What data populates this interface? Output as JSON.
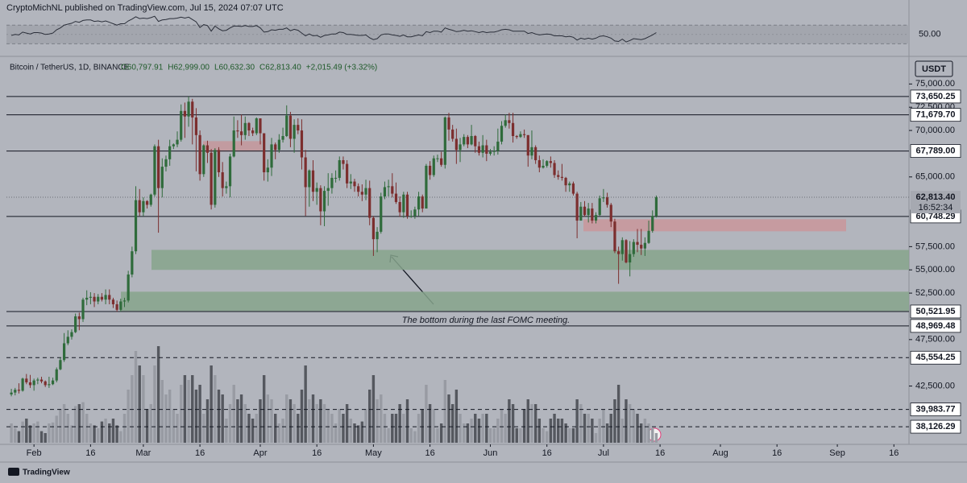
{
  "header": {
    "byline": "CryptoMichNL published on TradingView.com, Jul 15, 2024 07:07 UTC",
    "symbol": "Bitcoin / TetherUS, 1D, BINANCE",
    "ohlc": [
      "O60,797.91",
      "H62,999.00",
      "L60,632.30",
      "C62,813.40",
      "+2,015.49 (+3.32%)"
    ],
    "currency": "USDT",
    "brand": "TradingView"
  },
  "chart_data": {
    "type": "candlestick",
    "x": [
      "Jan 26",
      "Jan 27",
      "Jan 28",
      "Jan 29",
      "Jan 30",
      "Jan 31",
      "Feb 1",
      "Feb 2",
      "Feb 3",
      "Feb 4",
      "Feb 5",
      "Feb 6",
      "Feb 7",
      "Feb 8",
      "Feb 9",
      "Feb 10",
      "Feb 11",
      "Feb 12",
      "Feb 13",
      "Feb 14",
      "Feb 15",
      "Feb 16",
      "Feb 17",
      "Feb 18",
      "Feb 19",
      "Feb 20",
      "Feb 21",
      "Feb 22",
      "Feb 23",
      "Feb 24",
      "Feb 25",
      "Feb 26",
      "Feb 27",
      "Feb 28",
      "Feb 29",
      "Mar 1",
      "Mar 2",
      "Mar 3",
      "Mar 4",
      "Mar 5",
      "Mar 6",
      "Mar 7",
      "Mar 8",
      "Mar 9",
      "Mar 10",
      "Mar 11",
      "Mar 12",
      "Mar 13",
      "Mar 14",
      "Mar 15",
      "Mar 16",
      "Mar 17",
      "Mar 18",
      "Mar 19",
      "Mar 20",
      "Mar 21",
      "Mar 22",
      "Mar 23",
      "Mar 24",
      "Mar 25",
      "Mar 26",
      "Mar 27",
      "Mar 28",
      "Mar 29",
      "Mar 30",
      "Mar 31",
      "Apr 1",
      "Apr 2",
      "Apr 3",
      "Apr 4",
      "Apr 5",
      "Apr 6",
      "Apr 7",
      "Apr 8",
      "Apr 9",
      "Apr 10",
      "Apr 11",
      "Apr 12",
      "Apr 13",
      "Apr 14",
      "Apr 15",
      "Apr 16",
      "Apr 17",
      "Apr 18",
      "Apr 19",
      "Apr 20",
      "Apr 21",
      "Apr 22",
      "Apr 23",
      "Apr 24",
      "Apr 25",
      "Apr 26",
      "Apr 27",
      "Apr 28",
      "Apr 29",
      "Apr 30",
      "May 1",
      "May 2",
      "May 3",
      "May 4",
      "May 5",
      "May 6",
      "May 7",
      "May 8",
      "May 9",
      "May 10",
      "May 11",
      "May 12",
      "May 13",
      "May 14",
      "May 15",
      "May 16",
      "May 17",
      "May 18",
      "May 19",
      "May 20",
      "May 21",
      "May 22",
      "May 23",
      "May 24",
      "May 25",
      "May 26",
      "May 27",
      "May 28",
      "May 29",
      "May 30",
      "May 31",
      "Jun 1",
      "Jun 2",
      "Jun 3",
      "Jun 4",
      "Jun 5",
      "Jun 6",
      "Jun 7",
      "Jun 8",
      "Jun 9",
      "Jun 10",
      "Jun 11",
      "Jun 12",
      "Jun 13",
      "Jun 14",
      "Jun 15",
      "Jun 16",
      "Jun 17",
      "Jun 18",
      "Jun 19",
      "Jun 20",
      "Jun 21",
      "Jun 22",
      "Jun 23",
      "Jun 24",
      "Jun 25",
      "Jun 26",
      "Jun 27",
      "Jun 28",
      "Jun 29",
      "Jun 30",
      "Jul 1",
      "Jul 2",
      "Jul 3",
      "Jul 4",
      "Jul 5",
      "Jul 6",
      "Jul 7",
      "Jul 8",
      "Jul 9",
      "Jul 10",
      "Jul 11",
      "Jul 12",
      "Jul 13",
      "Jul 14",
      "Jul 15"
    ],
    "open": [
      41600,
      41800,
      42100,
      42000,
      43300,
      42900,
      42600,
      43100,
      43200,
      43000,
      42600,
      42700,
      43100,
      44300,
      45300,
      47100,
      47800,
      48300,
      50000,
      49700,
      51800,
      52000,
      52100,
      51600,
      52100,
      51800,
      52300,
      51800,
      51300,
      50700,
      51600,
      51700,
      54500,
      57000,
      62500,
      61200,
      62400,
      62000,
      63100,
      68300,
      63800,
      66100,
      66900,
      68300,
      68500,
      69000,
      72100,
      71500,
      73100,
      71400,
      69500,
      65300,
      68400,
      67600,
      62000,
      67900,
      65500,
      63800,
      64000,
      67200,
      70000,
      69900,
      69500,
      70800,
      70000,
      69700,
      71300,
      69700,
      65500,
      66000,
      68500,
      67900,
      69000,
      69400,
      71600,
      69100,
      70600,
      70000,
      67100,
      63900,
      65700,
      63400,
      63800,
      61300,
      63500,
      63800,
      64900,
      64900,
      66800,
      66400,
      64300,
      64500,
      64000,
      63400,
      63100,
      63800,
      60600,
      58300,
      59100,
      62900,
      63900,
      64000,
      63200,
      62300,
      61200,
      63100,
      60800,
      60800,
      61500,
      62900,
      61600,
      66200,
      65200,
      67000,
      67000,
      66300,
      71400,
      70100,
      69100,
      67900,
      68500,
      69300,
      68500,
      69400,
      68300,
      67600,
      68400,
      67500,
      67700,
      67800,
      68800,
      70500,
      71100,
      70800,
      69400,
      69300,
      69600,
      69500,
      67300,
      68200,
      66800,
      66000,
      66200,
      66700,
      66500,
      65200,
      65000,
      64900,
      64100,
      64300,
      63200,
      60300,
      61800,
      60900,
      61600,
      60300,
      60900,
      62700,
      62800,
      62000,
      60200,
      57000,
      56700,
      58200,
      55800,
      56700,
      58000,
      57700,
      57300,
      57900,
      59200,
      60797.91
    ],
    "high": [
      42200,
      42300,
      42800,
      43400,
      43800,
      43700,
      43300,
      43400,
      43500,
      43100,
      43500,
      43400,
      44500,
      45600,
      48200,
      48500,
      48600,
      50300,
      50400,
      52000,
      52800,
      52600,
      52500,
      52400,
      52500,
      52900,
      52900,
      52000,
      51700,
      51900,
      52000,
      54900,
      57500,
      64000,
      63700,
      62800,
      62500,
      63200,
      68500,
      69000,
      67000,
      67300,
      69000,
      68600,
      69900,
      72800,
      73000,
      73650,
      73400,
      72400,
      70000,
      68500,
      68900,
      68000,
      68100,
      68200,
      66600,
      64500,
      67500,
      71500,
      71100,
      71700,
      71500,
      70900,
      70300,
      71400,
      71300,
      69700,
      66900,
      69200,
      68700,
      69600,
      70300,
      72700,
      72000,
      71200,
      71300,
      71200,
      67900,
      65800,
      66800,
      64400,
      64100,
      64000,
      65400,
      65400,
      65700,
      67200,
      67200,
      66800,
      65300,
      64800,
      64300,
      64200,
      64700,
      64600,
      60800,
      59600,
      63300,
      64500,
      64700,
      65400,
      64400,
      62900,
      63400,
      63400,
      61400,
      61800,
      63400,
      63100,
      66400,
      66700,
      67300,
      67400,
      67700,
      71500,
      71900,
      70600,
      70200,
      69200,
      69600,
      69500,
      70600,
      69500,
      68800,
      69500,
      69000,
      68000,
      68300,
      70200,
      71000,
      71700,
      71900,
      71900,
      69500,
      69900,
      70100,
      69500,
      70000,
      68400,
      67300,
      66900,
      66800,
      67200,
      66800,
      65700,
      66400,
      65000,
      64500,
      64500,
      63400,
      62300,
      62400,
      62200,
      62200,
      61200,
      63000,
      63700,
      63300,
      62200,
      60500,
      57500,
      58500,
      58300,
      58100,
      58300,
      59400,
      59400,
      58500,
      60300,
      61400,
      62999
    ],
    "low": [
      41400,
      41500,
      41700,
      41900,
      42700,
      42300,
      42000,
      42700,
      42800,
      42400,
      42300,
      42600,
      42900,
      44200,
      45100,
      46900,
      47500,
      48200,
      48500,
      49400,
      51200,
      51300,
      51000,
      51300,
      51600,
      51300,
      51300,
      50900,
      50500,
      50500,
      51000,
      51500,
      54200,
      56700,
      60800,
      60800,
      61600,
      61800,
      62900,
      59000,
      62800,
      65600,
      66200,
      68000,
      68200,
      68800,
      69200,
      70400,
      68500,
      65600,
      64600,
      65000,
      66500,
      61500,
      61700,
      65000,
      62900,
      63200,
      62800,
      67100,
      69200,
      68400,
      69000,
      69400,
      69400,
      69500,
      68500,
      64600,
      64500,
      65100,
      66900,
      67600,
      68700,
      69300,
      68200,
      67600,
      69600,
      65800,
      60800,
      61800,
      62400,
      62000,
      59800,
      59700,
      61900,
      63200,
      64400,
      64600,
      65800,
      63800,
      63700,
      63400,
      62900,
      62400,
      62500,
      59800,
      56500,
      56900,
      58900,
      62600,
      62900,
      62800,
      62100,
      60700,
      60600,
      60500,
      60600,
      60500,
      60800,
      61200,
      61600,
      64700,
      65000,
      66600,
      66100,
      65900,
      68900,
      68800,
      66400,
      66600,
      68300,
      68100,
      68400,
      67600,
      67300,
      67100,
      66700,
      67300,
      67300,
      67400,
      68500,
      70300,
      70200,
      68700,
      69100,
      69200,
      69200,
      66100,
      66900,
      66400,
      65500,
      65900,
      66000,
      66000,
      64900,
      64700,
      64600,
      63400,
      63400,
      63000,
      58400,
      60300,
      60700,
      60100,
      60000,
      60000,
      60800,
      62300,
      61700,
      59600,
      56800,
      53500,
      56000,
      55700,
      54300,
      56400,
      56900,
      56600,
      56500,
      57800,
      59000,
      60632.3
    ],
    "close": [
      41800,
      42100,
      42000,
      43300,
      42900,
      42600,
      43100,
      43200,
      43000,
      42600,
      42700,
      43100,
      44300,
      45300,
      47100,
      47800,
      48300,
      50000,
      49700,
      51800,
      52000,
      52100,
      51600,
      52100,
      51800,
      52300,
      51800,
      51300,
      50700,
      51600,
      51700,
      54500,
      57000,
      62500,
      61200,
      62400,
      62000,
      63100,
      68300,
      63800,
      66100,
      66900,
      68300,
      68500,
      69000,
      72100,
      71500,
      73100,
      71400,
      69500,
      65300,
      68400,
      67600,
      62000,
      67900,
      65500,
      63800,
      64000,
      67200,
      70000,
      69900,
      69500,
      70800,
      70000,
      69700,
      71300,
      69700,
      65500,
      66000,
      68500,
      67900,
      69000,
      69400,
      71600,
      69100,
      70600,
      70000,
      67100,
      63900,
      65700,
      63400,
      63800,
      61300,
      63500,
      63800,
      64900,
      64900,
      66800,
      66400,
      64300,
      64500,
      64000,
      63400,
      63100,
      63800,
      60600,
      58300,
      59100,
      62900,
      63900,
      64000,
      63200,
      62300,
      61200,
      63100,
      60800,
      60800,
      61500,
      62900,
      61600,
      66200,
      65200,
      67000,
      67000,
      66300,
      71400,
      70100,
      69100,
      67900,
      68500,
      69300,
      68500,
      69400,
      68300,
      67600,
      68400,
      67500,
      67700,
      67800,
      68800,
      70500,
      71100,
      70800,
      69400,
      69300,
      69600,
      69500,
      67300,
      68200,
      66800,
      66000,
      66200,
      66700,
      66500,
      65200,
      65000,
      64900,
      64100,
      64300,
      63200,
      60300,
      61800,
      60900,
      61600,
      60300,
      60900,
      62700,
      62800,
      62000,
      60200,
      57000,
      56700,
      58200,
      55800,
      56700,
      58000,
      57700,
      57300,
      57900,
      59200,
      60797.91,
      62813.4
    ],
    "volume": [
      20,
      15,
      12,
      22,
      25,
      18,
      20,
      22,
      12,
      10,
      20,
      21,
      28,
      35,
      40,
      30,
      18,
      38,
      40,
      42,
      30,
      20,
      18,
      15,
      22,
      25,
      20,
      25,
      18,
      12,
      30,
      55,
      70,
      95,
      80,
      70,
      35,
      40,
      80,
      100,
      65,
      50,
      55,
      35,
      30,
      60,
      70,
      65,
      70,
      55,
      60,
      30,
      45,
      80,
      70,
      55,
      50,
      25,
      40,
      60,
      45,
      50,
      40,
      30,
      25,
      30,
      45,
      70,
      50,
      45,
      30,
      20,
      25,
      50,
      45,
      40,
      30,
      55,
      80,
      45,
      50,
      40,
      45,
      40,
      35,
      30,
      20,
      35,
      30,
      40,
      25,
      20,
      18,
      22,
      35,
      55,
      70,
      45,
      50,
      30,
      15,
      30,
      30,
      40,
      30,
      45,
      15,
      12,
      30,
      35,
      60,
      40,
      35,
      15,
      20,
      65,
      50,
      40,
      55,
      30,
      20,
      20,
      25,
      30,
      25,
      30,
      30,
      15,
      15,
      25,
      35,
      30,
      45,
      40,
      15,
      15,
      35,
      45,
      40,
      40,
      25,
      15,
      12,
      25,
      30,
      25,
      25,
      20,
      15,
      15,
      45,
      40,
      30,
      30,
      25,
      10,
      25,
      35,
      20,
      30,
      45,
      60,
      25,
      45,
      40,
      35,
      30,
      20,
      25,
      20,
      15,
      10
    ],
    "colors": {
      "up": "#2f6b3b",
      "down": "#7c2e2e",
      "volume_up": "#989ba3",
      "volume_down": "#55585f",
      "level": "#131722"
    },
    "xlim": [
      -1.3,
      238
    ],
    "xticks": [
      {
        "value": 6,
        "label": "Feb"
      },
      {
        "value": 21,
        "label": "16"
      },
      {
        "value": 35,
        "label": "Mar"
      },
      {
        "value": 50,
        "label": "16"
      },
      {
        "value": 66,
        "label": "Apr"
      },
      {
        "value": 81,
        "label": "16"
      },
      {
        "value": 96,
        "label": "May"
      },
      {
        "value": 111,
        "label": "16"
      },
      {
        "value": 127,
        "label": "Jun"
      },
      {
        "value": 142,
        "label": "16"
      },
      {
        "value": 157,
        "label": "Jul"
      },
      {
        "value": 172,
        "label": "16"
      },
      {
        "value": 188,
        "label": "Aug"
      },
      {
        "value": 203,
        "label": "16"
      },
      {
        "value": 219,
        "label": "Sep"
      },
      {
        "value": 234,
        "label": "16"
      }
    ],
    "ylim": [
      36400,
      77800
    ],
    "yticks": [
      {
        "value": 75000,
        "label": "75,000.00"
      },
      {
        "value": 72500,
        "label": "72,500.00"
      },
      {
        "value": 70000,
        "label": "70,000.00"
      },
      {
        "value": 65000,
        "label": "65,000.00"
      },
      {
        "value": 57500,
        "label": "57,500.00"
      },
      {
        "value": 55000,
        "label": "55,000.00"
      },
      {
        "value": 52500,
        "label": "52,500.00"
      },
      {
        "value": 47500,
        "label": "47,500.00"
      },
      {
        "value": 42500,
        "label": "42,500.00"
      }
    ],
    "levels": [
      {
        "value": 73650.25,
        "label": "73,650.25",
        "style": "solid"
      },
      {
        "value": 71679.7,
        "label": "71,679.70",
        "style": "solid"
      },
      {
        "value": 67789,
        "label": "67,789.00",
        "style": "solid"
      },
      {
        "value": 60748.29,
        "label": "60,748.29",
        "style": "solid"
      },
      {
        "value": 50521.95,
        "label": "50,521.95",
        "style": "solid"
      },
      {
        "value": 48969.48,
        "label": "48,969.48",
        "style": "solid"
      },
      {
        "value": 45554.25,
        "label": "45,554.25",
        "style": "dashed"
      },
      {
        "value": 39983.77,
        "label": "39,983.77",
        "style": "dashed"
      },
      {
        "value": 38126.29,
        "label": "38,126.29",
        "style": "dashed"
      }
    ],
    "last_price": {
      "value": 62813.4,
      "label": "62,813.40",
      "countdown": "16:52:34"
    },
    "zones": [
      {
        "low": 55000,
        "high": 57150,
        "color": "#86a58c"
      },
      {
        "low": 50580,
        "high": 52650,
        "color": "#86a58c"
      },
      {
        "low": 59150,
        "high": 60450,
        "color": "#c9969b"
      },
      {
        "low": 67720,
        "high": 68850,
        "color": "#c4979b"
      }
    ],
    "annotation": "The bottom during the last FOMC meeting.",
    "rsi": {
      "values": [
        48,
        50,
        49,
        55,
        53,
        51,
        54,
        54,
        53,
        50,
        51,
        53,
        60,
        64,
        70,
        72,
        74,
        78,
        76,
        80,
        81,
        81,
        78,
        79,
        77,
        79,
        76,
        73,
        70,
        73,
        73,
        79,
        83,
        88,
        84,
        85,
        84,
        86,
        89,
        78,
        81,
        82,
        84,
        84,
        85,
        87,
        85,
        87,
        82,
        77,
        65,
        71,
        69,
        57,
        68,
        62,
        58,
        59,
        64,
        68,
        68,
        67,
        69,
        67,
        67,
        69,
        64,
        55,
        56,
        60,
        59,
        61,
        61,
        64,
        58,
        61,
        59,
        53,
        47,
        51,
        47,
        48,
        44,
        48,
        49,
        51,
        51,
        55,
        54,
        50,
        50,
        49,
        48,
        48,
        49,
        43,
        39,
        41,
        49,
        51,
        51,
        49,
        48,
        46,
        49,
        45,
        45,
        47,
        49,
        47,
        56,
        54,
        57,
        57,
        55,
        64,
        61,
        59,
        56,
        57,
        59,
        57,
        58,
        56,
        54,
        56,
        54,
        55,
        55,
        57,
        60,
        61,
        60,
        57,
        57,
        57,
        57,
        52,
        54,
        51,
        49,
        50,
        51,
        50,
        47,
        47,
        47,
        45,
        46,
        44,
        38,
        42,
        40,
        42,
        40,
        42,
        46,
        47,
        45,
        42,
        36,
        35,
        40,
        34,
        37,
        41,
        40,
        39,
        41,
        45,
        49,
        54
      ],
      "ylim": [
        10,
        110
      ],
      "yticks": [
        {
          "value": 50,
          "label": "50.00"
        }
      ],
      "band": [
        30,
        70
      ],
      "color": "#2a2e39"
    }
  }
}
